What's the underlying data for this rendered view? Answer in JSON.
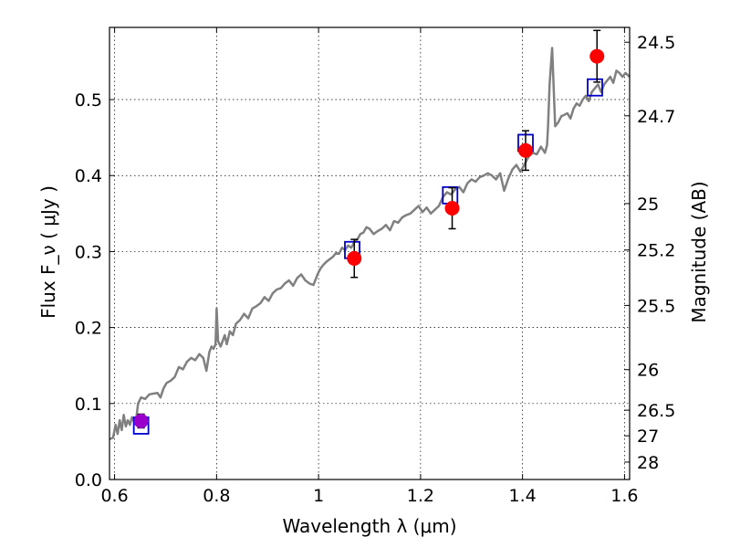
{
  "chart_data": {
    "type": "scatter",
    "xlabel": "Wavelength  λ (μm)",
    "ylabel": "Flux  F_ν  ( μJy )",
    "ylabel_right": "Magnitude (AB)",
    "xlim": [
      0.59,
      1.61
    ],
    "ylim": [
      0.0,
      0.595
    ],
    "grid": true,
    "colors": {
      "spectrum": "#808080",
      "photometry": "#ff0000",
      "model": "#0000cc",
      "first_point": "#9900cc",
      "errorbar": "#000000"
    },
    "x_ticks": [
      {
        "value": 0.6,
        "label": "0.6"
      },
      {
        "value": 0.8,
        "label": "0.8"
      },
      {
        "value": 1.0,
        "label": "1"
      },
      {
        "value": 1.2,
        "label": "1.2"
      },
      {
        "value": 1.4,
        "label": "1.4"
      },
      {
        "value": 1.6,
        "label": "1.6"
      }
    ],
    "y_ticks": [
      {
        "value": 0.0,
        "label": "0.0"
      },
      {
        "value": 0.1,
        "label": "0.1"
      },
      {
        "value": 0.2,
        "label": "0.2"
      },
      {
        "value": 0.3,
        "label": "0.3"
      },
      {
        "value": 0.4,
        "label": "0.4"
      },
      {
        "value": 0.5,
        "label": "0.5"
      }
    ],
    "right_ticks": [
      {
        "value": 24.5,
        "label": "24.5"
      },
      {
        "value": 24.7,
        "label": "24.7"
      },
      {
        "value": 25.0,
        "label": "25"
      },
      {
        "value": 25.2,
        "label": "25.2"
      },
      {
        "value": 25.5,
        "label": "25.5"
      },
      {
        "value": 26.0,
        "label": "26"
      },
      {
        "value": 26.5,
        "label": "26.5"
      },
      {
        "value": 27.0,
        "label": "27"
      },
      {
        "value": 28.0,
        "label": "28"
      }
    ],
    "spectrum": {
      "x": [
        0.59,
        0.597,
        0.602,
        0.606,
        0.61,
        0.614,
        0.618,
        0.622,
        0.626,
        0.63,
        0.634,
        0.638,
        0.642,
        0.646,
        0.652,
        0.66,
        0.668,
        0.676,
        0.684,
        0.69,
        0.696,
        0.702,
        0.71,
        0.718,
        0.726,
        0.734,
        0.742,
        0.75,
        0.758,
        0.766,
        0.774,
        0.78,
        0.786,
        0.79,
        0.794,
        0.798,
        0.8,
        0.803,
        0.808,
        0.816,
        0.82,
        0.826,
        0.832,
        0.838,
        0.846,
        0.854,
        0.862,
        0.87,
        0.878,
        0.886,
        0.894,
        0.902,
        0.91,
        0.918,
        0.926,
        0.934,
        0.942,
        0.95,
        0.958,
        0.966,
        0.974,
        0.982,
        0.99,
        0.998,
        1.004,
        1.01,
        1.016,
        1.022,
        1.028,
        1.034,
        1.04,
        1.046,
        1.052,
        1.058,
        1.064,
        1.07,
        1.076,
        1.082,
        1.088,
        1.094,
        1.1,
        1.108,
        1.116,
        1.124,
        1.132,
        1.14,
        1.148,
        1.156,
        1.164,
        1.172,
        1.18,
        1.188,
        1.196,
        1.204,
        1.212,
        1.22,
        1.228,
        1.236,
        1.244,
        1.252,
        1.26,
        1.268,
        1.276,
        1.284,
        1.292,
        1.3,
        1.308,
        1.316,
        1.324,
        1.332,
        1.34,
        1.348,
        1.356,
        1.364,
        1.372,
        1.38,
        1.388,
        1.396,
        1.404,
        1.412,
        1.42,
        1.428,
        1.436,
        1.444,
        1.448,
        1.45,
        1.453,
        1.458,
        1.464,
        1.47,
        1.476,
        1.482,
        1.488,
        1.494,
        1.5,
        1.506,
        1.512,
        1.518,
        1.524,
        1.53,
        1.536,
        1.542,
        1.548,
        1.554,
        1.56,
        1.566,
        1.572,
        1.578,
        1.584,
        1.59,
        1.596,
        1.602,
        1.61
      ],
      "y": [
        0.053,
        0.055,
        0.072,
        0.06,
        0.078,
        0.065,
        0.085,
        0.07,
        0.078,
        0.072,
        0.082,
        0.076,
        0.078,
        0.1,
        0.108,
        0.106,
        0.112,
        0.113,
        0.114,
        0.108,
        0.12,
        0.127,
        0.13,
        0.135,
        0.148,
        0.145,
        0.155,
        0.16,
        0.157,
        0.165,
        0.16,
        0.143,
        0.168,
        0.175,
        0.172,
        0.178,
        0.225,
        0.182,
        0.175,
        0.19,
        0.178,
        0.195,
        0.19,
        0.205,
        0.21,
        0.218,
        0.212,
        0.225,
        0.228,
        0.232,
        0.24,
        0.235,
        0.245,
        0.25,
        0.252,
        0.258,
        0.262,
        0.255,
        0.265,
        0.27,
        0.262,
        0.258,
        0.256,
        0.27,
        0.278,
        0.283,
        0.287,
        0.29,
        0.293,
        0.298,
        0.297,
        0.305,
        0.302,
        0.308,
        0.305,
        0.312,
        0.316,
        0.323,
        0.325,
        0.332,
        0.33,
        0.323,
        0.327,
        0.33,
        0.335,
        0.328,
        0.34,
        0.338,
        0.345,
        0.348,
        0.35,
        0.355,
        0.36,
        0.352,
        0.358,
        0.35,
        0.355,
        0.36,
        0.372,
        0.378,
        0.375,
        0.382,
        0.385,
        0.378,
        0.39,
        0.395,
        0.392,
        0.398,
        0.4,
        0.403,
        0.4,
        0.395,
        0.403,
        0.38,
        0.396,
        0.408,
        0.414,
        0.405,
        0.415,
        0.425,
        0.43,
        0.428,
        0.438,
        0.43,
        0.44,
        0.465,
        0.52,
        0.568,
        0.465,
        0.47,
        0.478,
        0.48,
        0.482,
        0.475,
        0.488,
        0.495,
        0.492,
        0.5,
        0.505,
        0.498,
        0.51,
        0.515,
        0.52,
        0.51,
        0.52,
        0.525,
        0.53,
        0.522,
        0.538,
        0.535,
        0.53,
        0.535,
        0.53
      ]
    },
    "photometry": [
      {
        "x": 0.652,
        "y": 0.077,
        "yerr": 0.009
      },
      {
        "x": 1.07,
        "y": 0.291,
        "yerr": 0.025
      },
      {
        "x": 1.262,
        "y": 0.357,
        "yerr": 0.027
      },
      {
        "x": 1.406,
        "y": 0.433,
        "yerr": 0.026
      },
      {
        "x": 1.546,
        "y": 0.557,
        "yerr": 0.034
      }
    ],
    "model_points": [
      {
        "x": 0.652,
        "y": 0.071
      },
      {
        "x": 1.066,
        "y": 0.302
      },
      {
        "x": 1.258,
        "y": 0.374
      },
      {
        "x": 1.406,
        "y": 0.443
      },
      {
        "x": 1.542,
        "y": 0.516
      }
    ]
  }
}
